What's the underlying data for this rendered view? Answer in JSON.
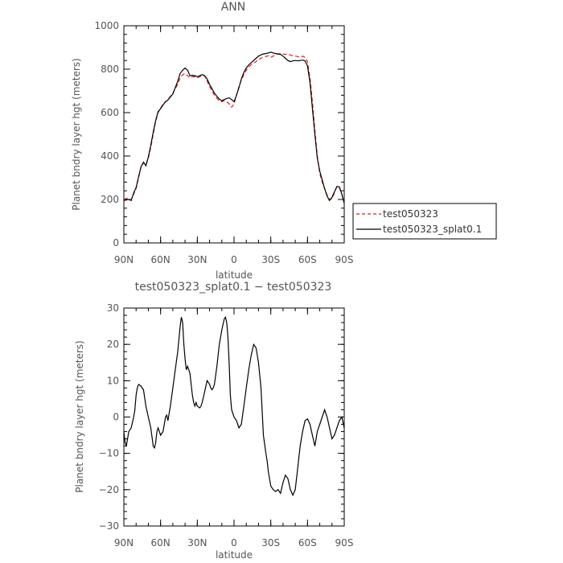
{
  "chart_data": [
    {
      "type": "line",
      "title": "ANN",
      "xlabel": "latitude",
      "ylabel": "Planet bndry layer hgt (meters)",
      "xlim": [
        90,
        -90
      ],
      "ylim": [
        0,
        1000
      ],
      "xticks": [
        90,
        60,
        30,
        0,
        -30,
        -60,
        -90
      ],
      "xtick_labels": [
        "90N",
        "60N",
        "30N",
        "0",
        "30S",
        "60S",
        "90S"
      ],
      "yticks": [
        0,
        200,
        400,
        600,
        800,
        1000
      ],
      "ytick_labels": [
        "0",
        "200",
        "400",
        "600",
        "800",
        "1000"
      ],
      "legend_position": "right",
      "series": [
        {
          "name": "test050323",
          "color": "#e41a1c",
          "dash": "dashed",
          "x": [
            90,
            88,
            86,
            84,
            82,
            80,
            78,
            76,
            74,
            72,
            70,
            68,
            66,
            64,
            62,
            60,
            58,
            56,
            54,
            52,
            50,
            48,
            46,
            44,
            42,
            40,
            38,
            36,
            34,
            32,
            30,
            28,
            26,
            24,
            22,
            20,
            18,
            16,
            14,
            12,
            10,
            8,
            6,
            4,
            2,
            0,
            -2,
            -4,
            -6,
            -8,
            -10,
            -12,
            -14,
            -16,
            -18,
            -20,
            -22,
            -24,
            -26,
            -28,
            -30,
            -32,
            -34,
            -36,
            -38,
            -40,
            -42,
            -44,
            -46,
            -48,
            -50,
            -52,
            -54,
            -56,
            -58,
            -60,
            -62,
            -64,
            -66,
            -68,
            -70,
            -72,
            -74,
            -76,
            -78,
            -80,
            -82,
            -84,
            -86,
            -88,
            -90
          ],
          "y": [
            200,
            205,
            205,
            198,
            225,
            250,
            300,
            350,
            370,
            360,
            390,
            440,
            500,
            560,
            600,
            620,
            640,
            650,
            660,
            675,
            690,
            710,
            730,
            760,
            775,
            780,
            770,
            760,
            765,
            765,
            760,
            765,
            770,
            770,
            745,
            720,
            700,
            680,
            665,
            655,
            650,
            655,
            650,
            640,
            625,
            640,
            680,
            720,
            750,
            775,
            795,
            810,
            820,
            828,
            835,
            845,
            850,
            855,
            858,
            862,
            855,
            860,
            868,
            870,
            872,
            870,
            868,
            870,
            865,
            862,
            860,
            858,
            855,
            860,
            855,
            835,
            760,
            650,
            520,
            400,
            320,
            280,
            250,
            220,
            200,
            205,
            230,
            260,
            255,
            225,
            185
          ]
        },
        {
          "name": "test050323_splat0.1",
          "color": "#000000",
          "dash": "solid",
          "x": [
            90,
            88,
            86,
            84,
            82,
            80,
            78,
            76,
            74,
            72,
            70,
            68,
            66,
            64,
            62,
            60,
            58,
            56,
            54,
            52,
            50,
            48,
            46,
            44,
            42,
            40,
            38,
            36,
            34,
            32,
            30,
            28,
            26,
            24,
            22,
            20,
            18,
            16,
            14,
            12,
            10,
            8,
            6,
            4,
            2,
            0,
            -2,
            -4,
            -6,
            -8,
            -10,
            -12,
            -14,
            -16,
            -18,
            -20,
            -22,
            -24,
            -26,
            -28,
            -30,
            -32,
            -34,
            -36,
            -38,
            -40,
            -42,
            -44,
            -46,
            -48,
            -50,
            -52,
            -54,
            -56,
            -58,
            -60,
            -62,
            -64,
            -66,
            -68,
            -70,
            -72,
            -74,
            -76,
            -78,
            -80,
            -82,
            -84,
            -86,
            -88,
            -90
          ],
          "y": [
            195,
            198,
            200,
            195,
            230,
            255,
            305,
            350,
            372,
            355,
            395,
            450,
            510,
            565,
            605,
            618,
            635,
            650,
            658,
            672,
            685,
            715,
            745,
            780,
            795,
            805,
            795,
            770,
            772,
            770,
            765,
            770,
            775,
            770,
            755,
            730,
            710,
            690,
            675,
            662,
            655,
            660,
            665,
            668,
            660,
            650,
            680,
            715,
            755,
            785,
            805,
            820,
            830,
            840,
            850,
            860,
            866,
            870,
            872,
            875,
            878,
            875,
            872,
            870,
            868,
            860,
            850,
            840,
            835,
            838,
            840,
            838,
            840,
            842,
            838,
            815,
            740,
            620,
            500,
            390,
            330,
            290,
            250,
            215,
            195,
            210,
            235,
            260,
            258,
            225,
            182
          ]
        }
      ]
    },
    {
      "type": "line",
      "title": "test050323_splat0.1 − test050323",
      "xlabel": "latitude",
      "ylabel": "Planet bndry layer hgt (meters)",
      "xlim": [
        90,
        -90
      ],
      "ylim": [
        -30,
        30
      ],
      "xticks": [
        90,
        60,
        30,
        0,
        -30,
        -60,
        -90
      ],
      "xtick_labels": [
        "90N",
        "60N",
        "30N",
        "0",
        "30S",
        "60S",
        "90S"
      ],
      "yticks": [
        -30,
        -20,
        -10,
        0,
        10,
        20,
        30
      ],
      "ytick_labels": [
        "−30",
        "−20",
        "−10",
        "0",
        "10",
        "20",
        "30"
      ],
      "series": [
        {
          "color": "#000000",
          "dash": "solid",
          "x": [
            90,
            89,
            88,
            87,
            86,
            84,
            82,
            81,
            80,
            79,
            78,
            76,
            74,
            72,
            70,
            68,
            67,
            66,
            65,
            64,
            63,
            62,
            60,
            58,
            56,
            55,
            54,
            52,
            50,
            48,
            46,
            44,
            43,
            42,
            41,
            40,
            39,
            38,
            36,
            34,
            33,
            32,
            31,
            30,
            28,
            27,
            26,
            24,
            22,
            20,
            19,
            18,
            17,
            16,
            14,
            12,
            10,
            8,
            7,
            6,
            5,
            4,
            3,
            2,
            1,
            0,
            -1,
            -2,
            -3,
            -4,
            -6,
            -8,
            -10,
            -12,
            -14,
            -16,
            -18,
            -20,
            -22,
            -24,
            -26,
            -27,
            -28,
            -30,
            -32,
            -34,
            -36,
            -38,
            -40,
            -42,
            -44,
            -46,
            -48,
            -50,
            -52,
            -54,
            -55,
            -56,
            -58,
            -60,
            -62,
            -64,
            -66,
            -68,
            -70,
            -72,
            -74,
            -76,
            -78,
            -80,
            -82,
            -84,
            -86,
            -88,
            -90
          ],
          "y": [
            -4,
            -7,
            -8,
            -6,
            -4,
            -3,
            0,
            2,
            6,
            8,
            9,
            8.5,
            7.5,
            3,
            0,
            -3,
            -5.5,
            -8,
            -8.5,
            -7,
            -4,
            -3,
            -5,
            -4,
            0,
            0.5,
            -1,
            3,
            8,
            13,
            18,
            25,
            27.5,
            26,
            20,
            16,
            13,
            14,
            12,
            6,
            4,
            3,
            4,
            3,
            2.5,
            3,
            4,
            7,
            10,
            9,
            8,
            7.5,
            8,
            9,
            14,
            20,
            24,
            27,
            27.5,
            26,
            22,
            15,
            6,
            2,
            1,
            0,
            -0.5,
            -1,
            -2,
            -3,
            -2,
            3,
            8,
            13,
            17,
            20,
            19,
            15,
            8,
            -5,
            -10,
            -12,
            -15,
            -19,
            -20,
            -20.5,
            -20,
            -21,
            -18,
            -16,
            -17,
            -20,
            -21.5,
            -20,
            -14,
            -8,
            -6,
            -4,
            -1,
            -0.5,
            -2,
            -5,
            -8,
            -4,
            -2,
            0,
            2,
            0,
            -3,
            -6,
            -5,
            -3,
            -1,
            0,
            -3
          ]
        }
      ]
    }
  ]
}
